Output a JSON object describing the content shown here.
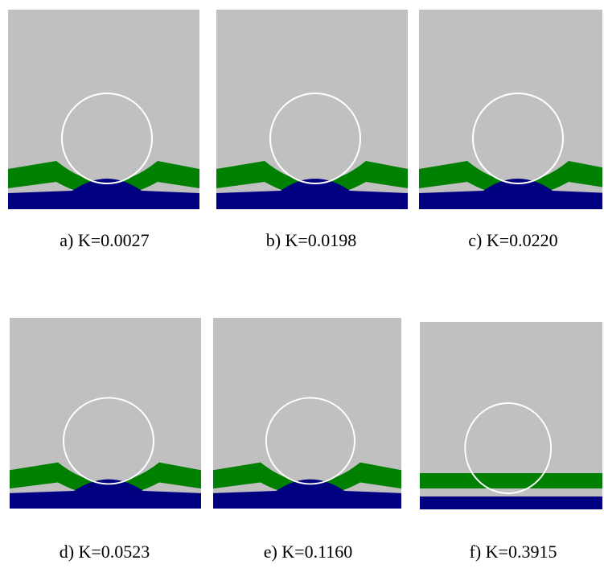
{
  "figure": {
    "panels": [
      {
        "caption": "a) K=0.0027"
      },
      {
        "caption": "b) K=0.0198"
      },
      {
        "caption": "c) K=0.0220"
      },
      {
        "caption": "d) K=0.0523"
      },
      {
        "caption": "e) K=0.1160"
      },
      {
        "caption": "f) K=0.3915"
      }
    ]
  }
}
